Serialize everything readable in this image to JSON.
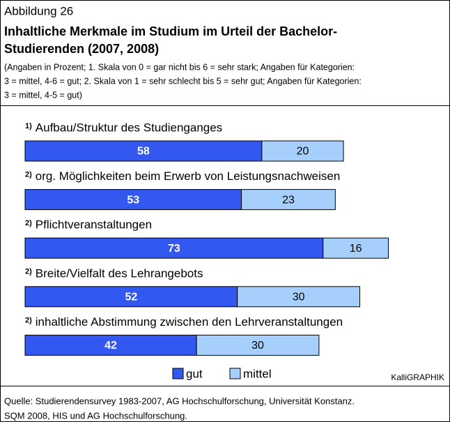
{
  "chart_data": {
    "type": "stacked-bar-horizontal",
    "figure_label": "Abbildung 26",
    "title": [
      "Inhaltliche Merkmale im Studium im Urteil der Bachelor-",
      "Studierenden (2007, 2008)"
    ],
    "subtitle": [
      "(Angaben in Prozent; 1. Skala von 0 = gar nicht bis 6 = sehr stark; Angaben für Kategorien:",
      "3 = mittel, 4-6 = gut; 2. Skala von 1 = sehr schlecht  bis 5 = sehr gut; Angaben für Kategorien:",
      "3 = mittel, 4-5 = gut)"
    ],
    "category_notes": [
      "1)",
      "2)",
      "2)",
      "2)",
      "2)"
    ],
    "categories": [
      "Aufbau/Struktur des Studienganges",
      "org. Möglichkeiten beim Erwerb von Leistungsnachweisen",
      "Pflichtveranstaltungen",
      "Breite/Vielfalt des Lehrangebots",
      "inhaltliche Abstimmung zwischen den Lehrveranstaltungen"
    ],
    "series": [
      {
        "name": "gut",
        "color": "#3358f0",
        "values": [
          58,
          53,
          73,
          52,
          42
        ]
      },
      {
        "name": "mittel",
        "color": "#a6d0fb",
        "values": [
          20,
          23,
          16,
          30,
          30
        ]
      }
    ],
    "legend": "bottom",
    "credit": "KalliGRAPHIK",
    "source": [
      "Quelle:  Studierendensurvey 1983-2007, AG Hochschulforschung, Universität Konstanz.",
      "SQM 2008, HIS und AG Hochschulforschung."
    ]
  }
}
